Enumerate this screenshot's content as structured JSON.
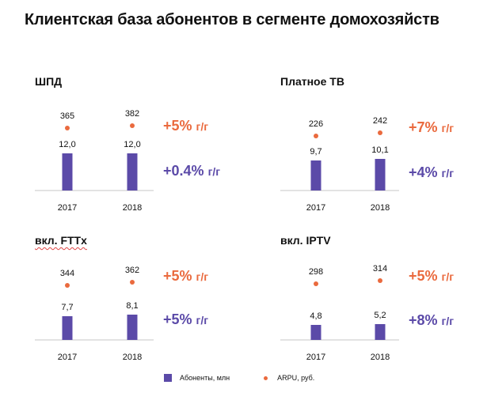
{
  "title": "Клиентская база абонентов в сегменте домохозяйств",
  "colors": {
    "subscribers": "#5b4aa8",
    "arpu": "#ea6a3e",
    "axis": "#c7c7c7"
  },
  "legend": {
    "subscribers": "Абоненты, млн",
    "arpu": "ARPU, руб."
  },
  "panels": [
    {
      "title": "ШПД",
      "years": [
        "2017",
        "2018"
      ],
      "subscribers": [
        12.0,
        12.0
      ],
      "subscribers_labels": [
        "12,0",
        "12,0"
      ],
      "arpu": [
        365,
        382
      ],
      "arpu_labels": [
        "365",
        "382"
      ],
      "arpu_change": {
        "value": "+5%",
        "unit": "г/г"
      },
      "subs_change": {
        "value": "+0.4%",
        "unit": "г/г"
      }
    },
    {
      "title": "Платное ТВ",
      "years": [
        "2017",
        "2018"
      ],
      "subscribers": [
        9.7,
        10.1
      ],
      "subscribers_labels": [
        "9,7",
        "10,1"
      ],
      "arpu": [
        226,
        242
      ],
      "arpu_labels": [
        "226",
        "242"
      ],
      "arpu_change": {
        "value": "+7%",
        "unit": "г/г"
      },
      "subs_change": {
        "value": "+4%",
        "unit": "г/г"
      }
    },
    {
      "title": "вкл. FTTx",
      "years": [
        "2017",
        "2018"
      ],
      "subscribers": [
        7.7,
        8.1
      ],
      "subscribers_labels": [
        "7,7",
        "8,1"
      ],
      "arpu": [
        344,
        362
      ],
      "arpu_labels": [
        "344",
        "362"
      ],
      "arpu_change": {
        "value": "+5%",
        "unit": "г/г"
      },
      "subs_change": {
        "value": "+5%",
        "unit": "г/г"
      }
    },
    {
      "title": "вкл. IPTV",
      "years": [
        "2017",
        "2018"
      ],
      "subscribers": [
        4.8,
        5.2
      ],
      "subscribers_labels": [
        "4,8",
        "5,2"
      ],
      "arpu": [
        298,
        314
      ],
      "arpu_labels": [
        "298",
        "314"
      ],
      "arpu_change": {
        "value": "+5%",
        "unit": "г/г"
      },
      "subs_change": {
        "value": "+8%",
        "unit": "г/г"
      }
    }
  ],
  "chart_data": [
    {
      "type": "bar",
      "title": "ШПД",
      "categories": [
        "2017",
        "2018"
      ],
      "series": [
        {
          "name": "Абоненты, млн",
          "values": [
            12.0,
            12.0
          ]
        },
        {
          "name": "ARPU, руб.",
          "values": [
            365,
            382
          ]
        }
      ]
    },
    {
      "type": "bar",
      "title": "Платное ТВ",
      "categories": [
        "2017",
        "2018"
      ],
      "series": [
        {
          "name": "Абоненты, млн",
          "values": [
            9.7,
            10.1
          ]
        },
        {
          "name": "ARPU, руб.",
          "values": [
            226,
            242
          ]
        }
      ]
    },
    {
      "type": "bar",
      "title": "вкл. FTTx",
      "categories": [
        "2017",
        "2018"
      ],
      "series": [
        {
          "name": "Абоненты, млн",
          "values": [
            7.7,
            8.1
          ]
        },
        {
          "name": "ARPU, руб.",
          "values": [
            344,
            362
          ]
        }
      ]
    },
    {
      "type": "bar",
      "title": "вкл. IPTV",
      "categories": [
        "2017",
        "2018"
      ],
      "series": [
        {
          "name": "Абоненты, млн",
          "values": [
            4.8,
            5.2
          ]
        },
        {
          "name": "ARPU, руб.",
          "values": [
            298,
            314
          ]
        }
      ]
    }
  ]
}
